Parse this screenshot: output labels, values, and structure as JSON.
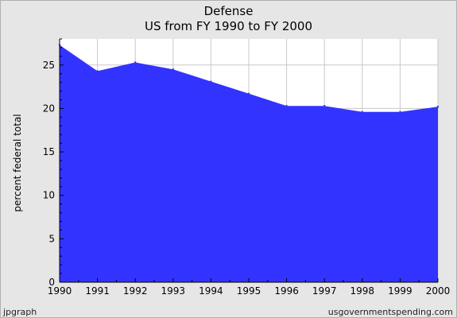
{
  "chart_data": {
    "type": "area",
    "title": "Defense",
    "subtitle": "US from FY 1990 to FY 2000",
    "xlabel": "",
    "ylabel": "percent federal total",
    "x": [
      "1990",
      "1991",
      "1992",
      "1993",
      "1994",
      "1995",
      "1996",
      "1997",
      "1998",
      "1999",
      "2000"
    ],
    "series": [
      {
        "values": [
          27.3,
          24.3,
          25.3,
          24.5,
          23.1,
          21.7,
          20.3,
          20.3,
          19.6,
          19.6,
          20.2
        ]
      }
    ],
    "ylim": [
      0,
      28
    ],
    "yticks": [
      0,
      5,
      10,
      15,
      20,
      25
    ],
    "grid": true,
    "colors": {
      "fill": "#3333ff",
      "plot_bg": "#ffffff",
      "page_bg": "#e6e6e6",
      "grid": "#c8c8c8"
    }
  },
  "footer": {
    "left": "jpgraph",
    "right": "usgovernmentspending.com"
  }
}
